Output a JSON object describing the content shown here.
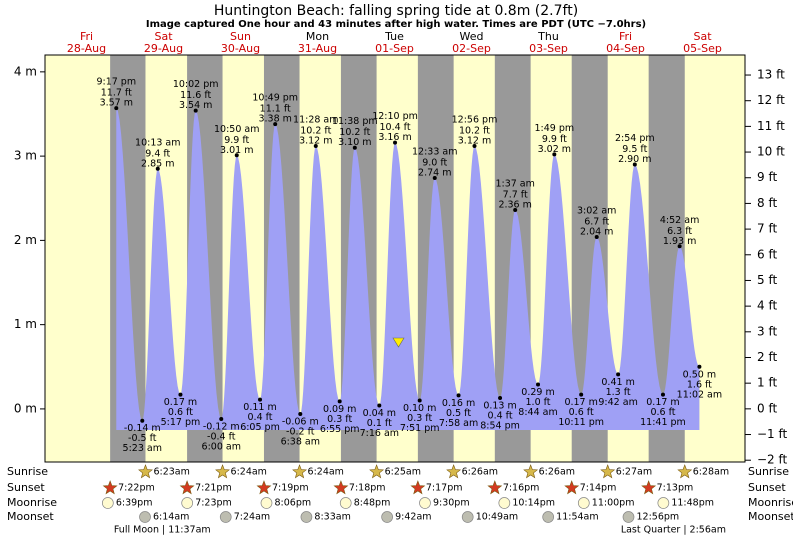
{
  "chart_data": {
    "type": "tide",
    "title": "Huntington Beach: falling  spring tide at 0.8m (2.7ft)",
    "subtitle": "Image captured One hour and 43 minutes after high water. Times are PDT (UTC −7.0hrs)",
    "ylim": [
      -0.63,
      4.2
    ],
    "yticks": [
      {
        "value": 0,
        "label": "0 m"
      },
      {
        "value": 1,
        "label": "1 m"
      },
      {
        "value": 2,
        "label": "2 m"
      },
      {
        "value": 3,
        "label": "3 m"
      },
      {
        "value": 4,
        "label": "4 m"
      }
    ],
    "y2lim": [
      -2.07,
      13.78
    ],
    "y2ticks": [
      {
        "value": -2,
        "label": "−2 ft"
      },
      {
        "value": -1,
        "label": "−1 ft"
      },
      {
        "value": 0,
        "label": "0 ft"
      },
      {
        "value": 1,
        "label": "1 ft"
      },
      {
        "value": 2,
        "label": "2 ft"
      },
      {
        "value": 3,
        "label": "3 ft"
      },
      {
        "value": 4,
        "label": "4 ft"
      },
      {
        "value": 5,
        "label": "5 ft"
      },
      {
        "value": 6,
        "label": "6 ft"
      },
      {
        "value": 7,
        "label": "7 ft"
      },
      {
        "value": 8,
        "label": "8 ft"
      },
      {
        "value": 9,
        "label": "9 ft"
      },
      {
        "value": 10,
        "label": "10 ft"
      },
      {
        "value": 11,
        "label": "11 ft"
      },
      {
        "value": 12,
        "label": "12 ft"
      },
      {
        "value": 13,
        "label": "13 ft"
      }
    ],
    "row_labels": [
      "Sunrise",
      "Sunset",
      "Moonrise",
      "Moonset"
    ],
    "days": [
      {
        "weekday": "Fri",
        "date": "28-Aug",
        "color": "#cc0000",
        "sunset": "7:22pm",
        "moonrise": "6:39pm",
        "extremes": [
          {
            "time": "9:17 pm",
            "ft": "11.7 ft",
            "m": 3.57,
            "m_label": "3.57 m"
          }
        ]
      },
      {
        "weekday": "Sat",
        "date": "29-Aug",
        "color": "#cc0000",
        "sunrise": "6:23am",
        "sunset": "7:21pm",
        "moonrise": "7:23pm",
        "moonset": "6:14am",
        "phase": "Full Moon | 11:37am",
        "extremes": [
          {
            "time": "5:23 am",
            "ft": "-0.5 ft",
            "m": -0.14,
            "m_label": "-0.14 m"
          },
          {
            "time": "10:13 am",
            "ft": "9.4 ft",
            "m": 2.85,
            "m_label": "2.85 m"
          },
          {
            "time": "5:17 pm",
            "ft": "0.6 ft",
            "m": 0.17,
            "m_label": "0.17 m"
          },
          {
            "time": "10:02 pm",
            "ft": "11.6 ft",
            "m": 3.54,
            "m_label": "3.54 m"
          }
        ]
      },
      {
        "weekday": "Sun",
        "date": "30-Aug",
        "color": "#cc0000",
        "sunrise": "6:24am",
        "sunset": "7:19pm",
        "moonrise": "8:06pm",
        "moonset": "7:24am",
        "extremes": [
          {
            "time": "6:00 am",
            "ft": "-0.4 ft",
            "m": -0.12,
            "m_label": "-0.12 m"
          },
          {
            "time": "10:50 am",
            "ft": "9.9 ft",
            "m": 3.01,
            "m_label": "3.01 m"
          },
          {
            "time": "6:05 pm",
            "ft": "0.4 ft",
            "m": 0.11,
            "m_label": "0.11 m"
          },
          {
            "time": "10:49 pm",
            "ft": "11.1 ft",
            "m": 3.38,
            "m_label": "3.38 m"
          }
        ]
      },
      {
        "weekday": "Mon",
        "date": "31-Aug",
        "color": "#000000",
        "sunrise": "6:24am",
        "sunset": "7:18pm",
        "moonrise": "8:48pm",
        "moonset": "8:33am",
        "extremes": [
          {
            "time": "6:38 am",
            "ft": "-0.2 ft",
            "m": -0.06,
            "m_label": "-0.06 m"
          },
          {
            "time": "11:28 am",
            "ft": "10.2 ft",
            "m": 3.12,
            "m_label": "3.12 m"
          },
          {
            "time": "6:55 pm",
            "ft": "0.3 ft",
            "m": 0.09,
            "m_label": "0.09 m"
          },
          {
            "time": "11:38 pm",
            "ft": "10.2 ft",
            "m": 3.1,
            "m_label": "3.10 m"
          }
        ]
      },
      {
        "weekday": "Tue",
        "date": "01-Sep",
        "color": "#000000",
        "sunrise": "6:25am",
        "sunset": "7:17pm",
        "moonrise": "9:30pm",
        "moonset": "9:42am",
        "extremes": [
          {
            "time": "7:16 am",
            "ft": "0.1 ft",
            "m": 0.04,
            "m_label": "0.04 m"
          },
          {
            "time": "12:10 pm",
            "ft": "10.4 ft",
            "m": 3.16,
            "m_label": "3.16 m"
          },
          {
            "time": "7:51 pm",
            "ft": "0.3 ft",
            "m": 0.1,
            "m_label": "0.10 m"
          }
        ]
      },
      {
        "weekday": "Wed",
        "date": "02-Sep",
        "color": "#000000",
        "sunrise": "6:26am",
        "sunset": "7:16pm",
        "moonrise": "10:14pm",
        "moonset": "10:49am",
        "extremes": [
          {
            "time": "12:33 am",
            "ft": "9.0 ft",
            "m": 2.74,
            "m_label": "2.74 m"
          },
          {
            "time": "7:58 am",
            "ft": "0.5 ft",
            "m": 0.16,
            "m_label": "0.16 m"
          },
          {
            "time": "12:56 pm",
            "ft": "10.2 ft",
            "m": 3.12,
            "m_label": "3.12 m"
          },
          {
            "time": "8:54 pm",
            "ft": "0.4 ft",
            "m": 0.13,
            "m_label": "0.13 m"
          }
        ]
      },
      {
        "weekday": "Thu",
        "date": "03-Sep",
        "color": "#000000",
        "sunrise": "6:26am",
        "sunset": "7:14pm",
        "moonrise": "11:00pm",
        "moonset": "11:54am",
        "extremes": [
          {
            "time": "1:37 am",
            "ft": "7.7 ft",
            "m": 2.36,
            "m_label": "2.36 m"
          },
          {
            "time": "8:44 am",
            "ft": "1.0 ft",
            "m": 0.29,
            "m_label": "0.29 m"
          },
          {
            "time": "1:49 pm",
            "ft": "9.9 ft",
            "m": 3.02,
            "m_label": "3.02 m"
          },
          {
            "time": "10:11 pm",
            "ft": "0.6 ft",
            "m": 0.17,
            "m_label": "0.17 m"
          }
        ]
      },
      {
        "weekday": "Fri",
        "date": "04-Sep",
        "color": "#cc0000",
        "sunrise": "6:27am",
        "sunset": "7:13pm",
        "moonrise": "11:48pm",
        "moonset": "12:56pm",
        "extremes": [
          {
            "time": "3:02 am",
            "ft": "6.7 ft",
            "m": 2.04,
            "m_label": "2.04 m"
          },
          {
            "time": "9:42 am",
            "ft": "1.3 ft",
            "m": 0.41,
            "m_label": "0.41 m"
          },
          {
            "time": "2:54 pm",
            "ft": "9.5 ft",
            "m": 2.9,
            "m_label": "2.90 m"
          },
          {
            "time": "11:41 pm",
            "ft": "0.6 ft",
            "m": 0.17,
            "m_label": "0.17 m"
          }
        ]
      },
      {
        "weekday": "Sat",
        "date": "05-Sep",
        "color": "#cc0000",
        "sunrise": "6:28am",
        "phase": "Last Quarter | 2:56am",
        "extremes": [
          {
            "time": "4:52 am",
            "ft": "6.3 ft",
            "m": 1.93,
            "m_label": "1.93 m"
          },
          {
            "time": "11:02 am",
            "ft": "1.6 ft",
            "m": 0.5,
            "m_label": "0.50 m"
          }
        ]
      }
    ]
  }
}
